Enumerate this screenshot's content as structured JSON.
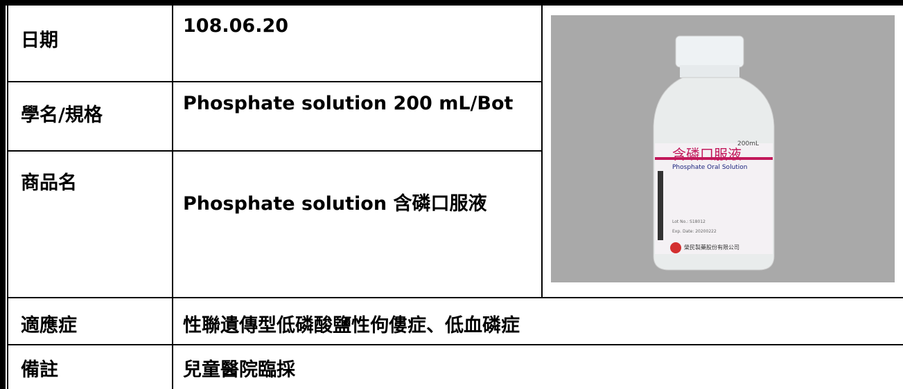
{
  "rows": [
    {
      "label": "日期",
      "value": "108.06.20"
    },
    {
      "label": "學名/規格",
      "value": "Phosphate solution 200 mL/Bot"
    },
    {
      "label": "商品名",
      "value": "Phosphate solution 含磷口服液"
    },
    {
      "label": "適應症",
      "value": "性聯遺傳型低磷酸鹽性佝僂症、低血磷症"
    },
    {
      "label": "備註",
      "value": "兒童醫院臨採"
    }
  ],
  "photo": {
    "name": "含磷口服液",
    "english": "Phosphate Oral Solution",
    "volume": "200mL",
    "lot": "Lot No.: S18012",
    "exp": "Exp. Date: 20200222",
    "maker": "榮民製藥股份有限公司"
  }
}
